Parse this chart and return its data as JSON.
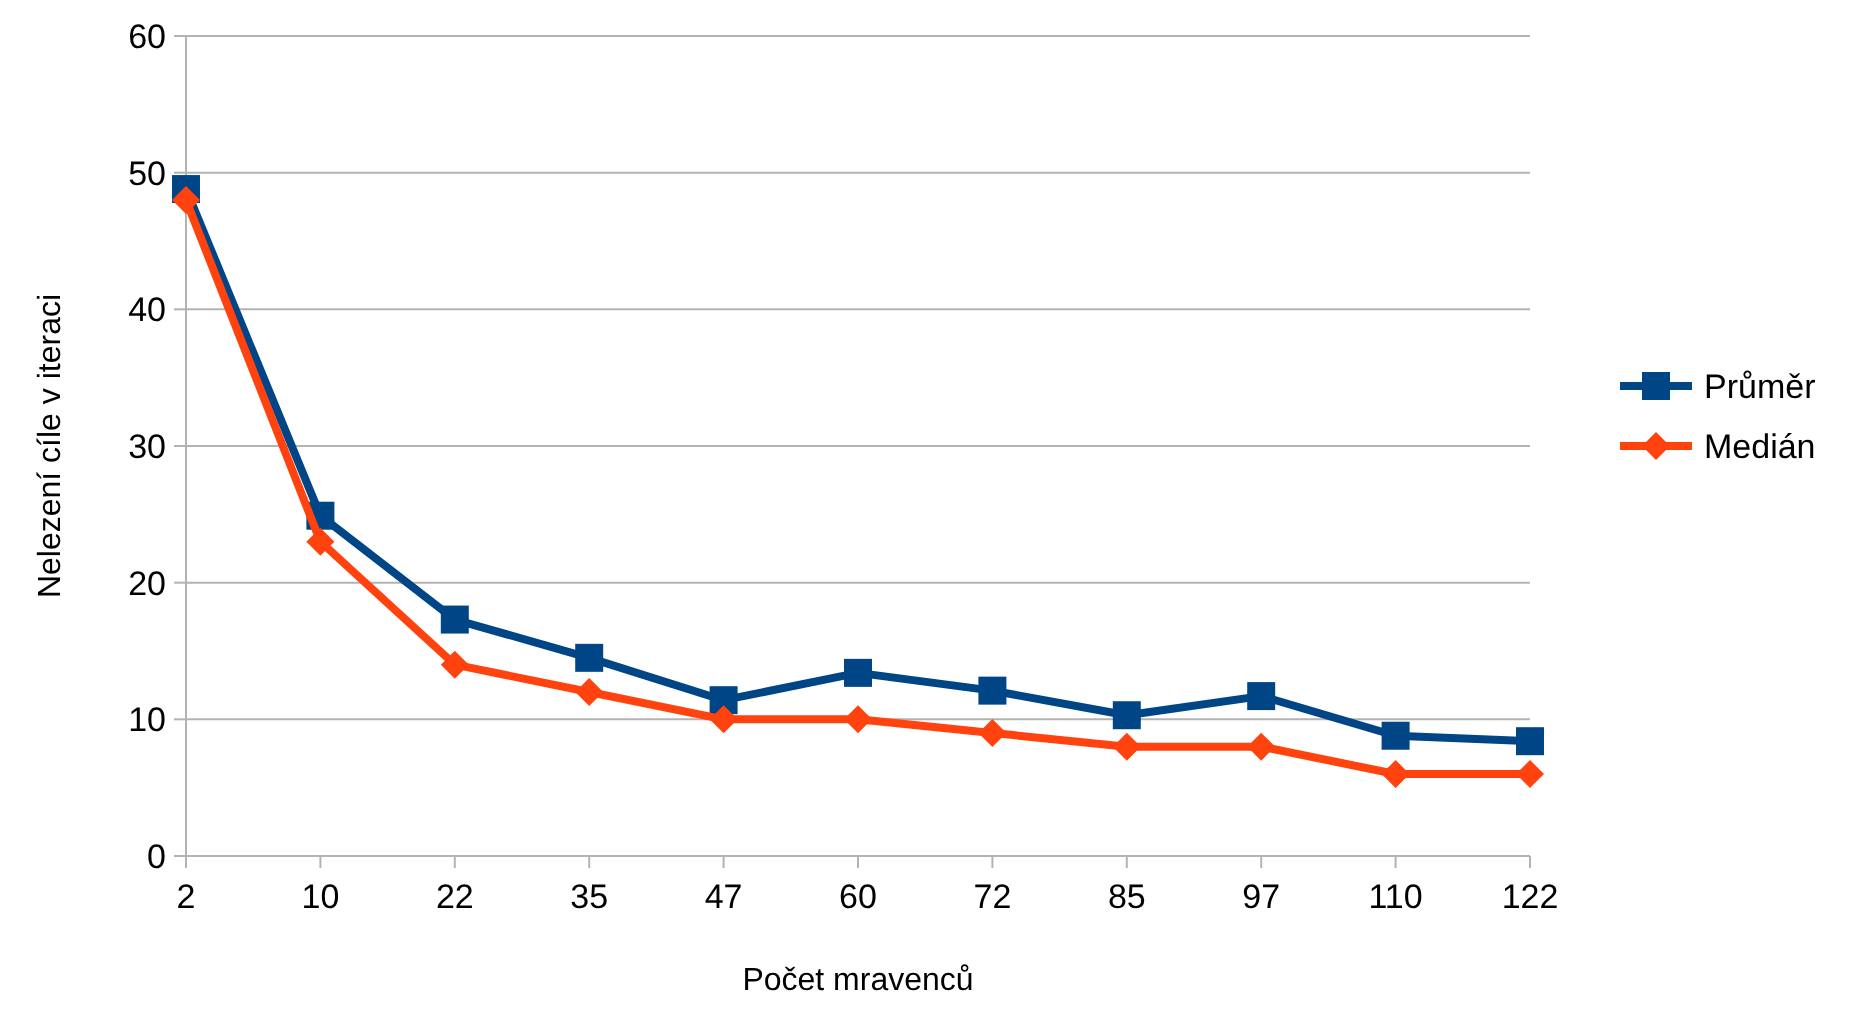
{
  "chart_data": {
    "type": "line",
    "xlabel": "Počet mravenců",
    "ylabel": "Nelezení cíle v iteraci",
    "categories": [
      "2",
      "10",
      "22",
      "35",
      "47",
      "60",
      "72",
      "85",
      "97",
      "110",
      "122"
    ],
    "ylim": [
      0,
      60
    ],
    "yticks": [
      0,
      10,
      20,
      30,
      40,
      50,
      60
    ],
    "grid": "y",
    "legend": "right",
    "line_style": "solid",
    "series": [
      {
        "name": "Průměr",
        "color": "#004586",
        "marker": "square",
        "values": [
          48.8,
          24.9,
          17.3,
          14.5,
          11.4,
          13.4,
          12.1,
          10.3,
          11.7,
          8.8,
          8.4
        ]
      },
      {
        "name": "Medián",
        "color": "#ff420e",
        "marker": "diamond",
        "values": [
          48,
          23,
          14,
          12,
          10,
          10,
          9,
          8,
          8,
          6,
          6
        ]
      }
    ]
  }
}
